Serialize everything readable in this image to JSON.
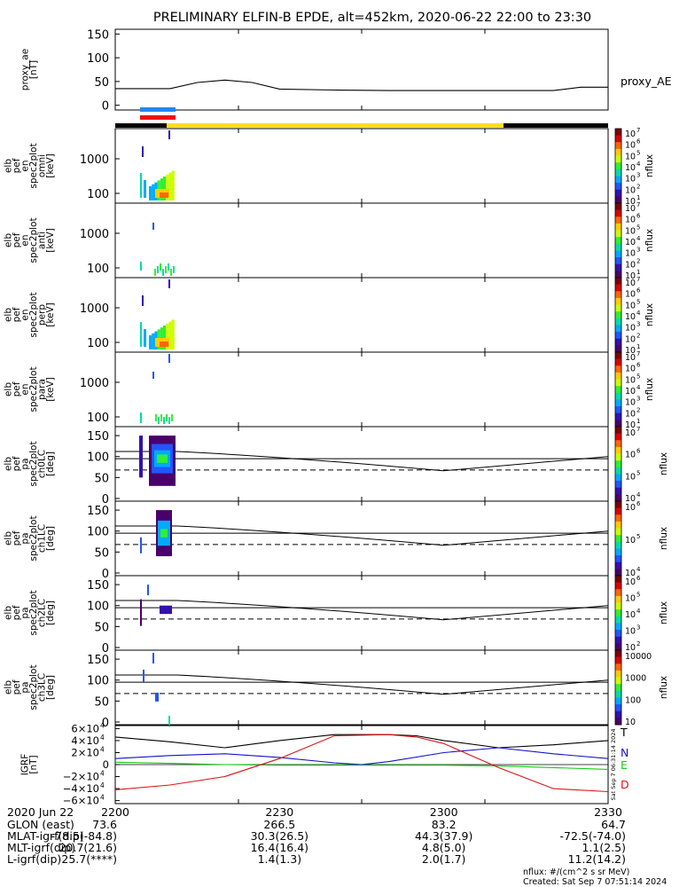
{
  "title": "PRELIMINARY ELFIN-B EPDE, alt=452km, 2020-06-22 22:00 to 23:30",
  "colors": {
    "bar_black": "#000000",
    "bar_yellow": "#ffdd22",
    "strip_blue": "#2288ee",
    "strip_red": "#ee1111",
    "grf_T": "#000000",
    "grf_N": "#1111cc",
    "grf_E": "#11cc11",
    "grf_D": "#dd1111"
  },
  "chart_data": [
    {
      "id": "proxy_ae",
      "type": "line",
      "ylabel_lines": [
        "proxy_ae",
        "[nT]"
      ],
      "yticks": [
        "150",
        "100",
        "50",
        "0"
      ],
      "ylim": [
        -10,
        160
      ],
      "xlim": [
        0,
        90
      ],
      "series_label": "proxy_AE",
      "x": [
        0,
        5,
        10,
        15,
        20,
        25,
        30,
        40,
        50,
        60,
        70,
        80,
        85,
        90
      ],
      "y": [
        35,
        35,
        35,
        48,
        53,
        48,
        34,
        32,
        31,
        31,
        31,
        31,
        38,
        38
      ]
    },
    {
      "id": "spectrograms_energy",
      "type": "heatmap",
      "panels": [
        {
          "ylabel_lines": [
            "elb",
            "pef",
            "en",
            "spec2plot",
            "omni",
            "[keV]"
          ],
          "yticks": [
            "1000",
            "100"
          ]
        },
        {
          "ylabel_lines": [
            "elb",
            "pef",
            "en",
            "spec2plot",
            "anti",
            "[keV]"
          ],
          "yticks": [
            "1000",
            "100"
          ]
        },
        {
          "ylabel_lines": [
            "elb",
            "pef",
            "en",
            "spec2plot",
            "perp",
            "[keV]"
          ],
          "yticks": [
            "1000",
            "100"
          ]
        },
        {
          "ylabel_lines": [
            "elb",
            "pef",
            "en",
            "spec2plot",
            "para",
            "[keV]"
          ],
          "yticks": [
            "1000",
            "100"
          ]
        }
      ],
      "colorbar_label": "nflux",
      "colorbar_ticks": [
        "10",
        "10",
        "10",
        "10",
        "10",
        "10",
        "10"
      ],
      "colorbar_exponents": [
        "7",
        "6",
        "5",
        "4",
        "3",
        "2",
        "1"
      ]
    },
    {
      "id": "spectrograms_pitch",
      "type": "heatmap",
      "panels": [
        {
          "ylabel_lines": [
            "elb",
            "pef",
            "pa",
            "spec2plot",
            "ch0LC",
            "[deg]"
          ],
          "yticks": [
            "150",
            "100",
            "50",
            "0"
          ],
          "cb_ticks": [
            "10",
            "10",
            "10",
            "10"
          ],
          "cb_exp": [
            "7",
            "6",
            "5",
            "4"
          ]
        },
        {
          "ylabel_lines": [
            "elb",
            "pef",
            "pa",
            "spec2plot",
            "ch1LC",
            "[deg]"
          ],
          "yticks": [
            "150",
            "100",
            "50",
            "0"
          ],
          "cb_ticks": [
            "10",
            "10",
            "10"
          ],
          "cb_exp": [
            "6",
            "5",
            "4"
          ]
        },
        {
          "ylabel_lines": [
            "elb",
            "pef",
            "pa",
            "spec2plot",
            "ch2LC",
            "[deg]"
          ],
          "yticks": [
            "150",
            "100",
            "50",
            "0"
          ],
          "cb_ticks": [
            "10",
            "10",
            "10",
            "10",
            "10"
          ],
          "cb_exp": [
            "6",
            "5",
            "4",
            "3",
            "2"
          ]
        },
        {
          "ylabel_lines": [
            "elb",
            "pef",
            "pa",
            "spec2plot",
            "ch3LC",
            "[deg]"
          ],
          "yticks": [
            "150",
            "100",
            "50",
            "0"
          ],
          "cb_ticks": [
            "10000",
            "1000",
            "100",
            "10"
          ],
          "cb_exp": [
            "",
            "",
            "",
            ""
          ]
        }
      ],
      "colorbar_label": "nflux"
    },
    {
      "id": "igrf",
      "type": "line",
      "ylabel_lines": [
        "IGRF",
        "[nT]"
      ],
      "yticks": [
        "6×10",
        "4×10",
        "2×10",
        "0",
        "−2×10",
        "−4×10",
        "−6×10"
      ],
      "ytick_exp": "4",
      "ylim": [
        -65000,
        65000
      ],
      "xlim": [
        0,
        90
      ],
      "series": [
        {
          "name": "T",
          "x": [
            0,
            10,
            20,
            30,
            40,
            50,
            55,
            60,
            70,
            80,
            90
          ],
          "y": [
            46000,
            38000,
            28000,
            40000,
            50000,
            50000,
            48000,
            40000,
            28000,
            33000,
            40000
          ]
        },
        {
          "name": "N",
          "x": [
            0,
            10,
            20,
            30,
            40,
            45,
            50,
            60,
            70,
            80,
            90
          ],
          "y": [
            10000,
            15000,
            18000,
            12000,
            3000,
            0,
            5000,
            20000,
            28000,
            18000,
            10000
          ]
        },
        {
          "name": "E",
          "x": [
            0,
            10,
            20,
            30,
            40,
            50,
            60,
            70,
            80,
            90
          ],
          "y": [
            4000,
            2000,
            0,
            -1000,
            -1000,
            -1000,
            -1000,
            -2000,
            -5000,
            -8000
          ]
        },
        {
          "name": "D",
          "x": [
            0,
            10,
            20,
            30,
            40,
            50,
            55,
            60,
            70,
            80,
            90
          ],
          "y": [
            -42000,
            -34000,
            -20000,
            10000,
            48000,
            50000,
            46000,
            35000,
            -5000,
            -40000,
            -45000
          ]
        }
      ]
    }
  ],
  "time_axis": {
    "tick_labels": [
      "2200",
      "2230",
      "2300",
      "2330"
    ]
  },
  "ephemeris": {
    "header": "2020 Jun 22",
    "rows": [
      {
        "label": "GLON (east)",
        "values": [
          "73.6",
          "266.5",
          "83.2",
          "64.7"
        ]
      },
      {
        "label": "MLAT-igrf(dip)",
        "values": [
          "-78.5(-84.8)",
          "30.3(26.5)",
          "44.3(37.9)",
          "-72.5(-74.0)"
        ]
      },
      {
        "label": "MLT-igrf(dip)",
        "values": [
          "20.7(21.6)",
          "16.4(16.4)",
          "4.8(5.0)",
          "1.1(2.5)"
        ]
      },
      {
        "label": "L-igrf(dip)",
        "values": [
          "25.7(****)",
          "1.4(1.3)",
          "2.0(1.7)",
          "11.2(14.2)"
        ]
      }
    ]
  },
  "footer": {
    "units": "nflux: #/(cm^2 s sr MeV)",
    "created": "Created: Sat Sep  7 07:51:14 2024",
    "vertical_stamp": "Sat Sep  7 06:31:14 2024"
  }
}
